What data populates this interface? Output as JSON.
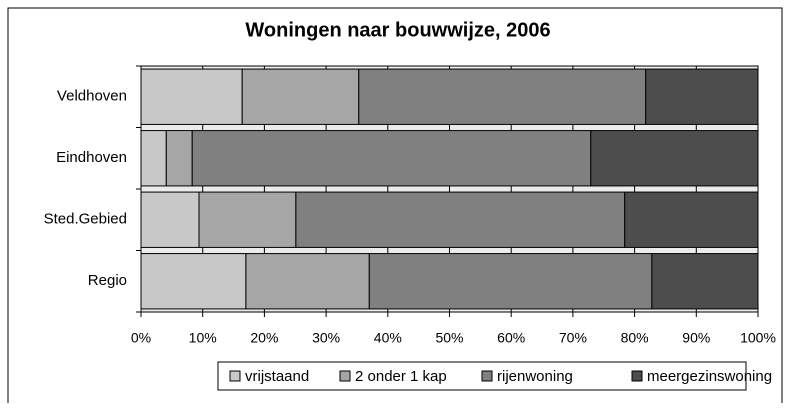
{
  "chart_data": {
    "type": "bar",
    "orientation": "horizontal",
    "stacked": true,
    "title": "Woningen naar bouwwijze, 2006",
    "categories": [
      "Veldhoven",
      "Eindhoven",
      "Sted.Gebied",
      "Regio"
    ],
    "series": [
      {
        "name": "vrijstaand",
        "color": "#c8c8c8",
        "values": [
          16.4,
          4.1,
          9.4,
          17.0
        ]
      },
      {
        "name": "2 onder 1 kap",
        "color": "#a6a6a6",
        "values": [
          18.9,
          4.2,
          15.7,
          20.0
        ]
      },
      {
        "name": "rijenwoning",
        "color": "#808080",
        "values": [
          46.5,
          64.6,
          53.3,
          45.8
        ]
      },
      {
        "name": "meergezinswoning",
        "color": "#4d4d4d",
        "values": [
          18.2,
          27.1,
          21.6,
          17.2
        ]
      }
    ],
    "xlim": [
      0,
      100
    ],
    "xticks": [
      {
        "value": 0,
        "label": "0%"
      },
      {
        "value": 10,
        "label": "10%"
      },
      {
        "value": 20,
        "label": "20%"
      },
      {
        "value": 30,
        "label": "30%"
      },
      {
        "value": 40,
        "label": "40%"
      },
      {
        "value": 50,
        "label": "50%"
      },
      {
        "value": 60,
        "label": "60%"
      },
      {
        "value": 70,
        "label": "70%"
      },
      {
        "value": 80,
        "label": "80%"
      },
      {
        "value": 90,
        "label": "90%"
      },
      {
        "value": 100,
        "label": "100%"
      }
    ],
    "grid": true,
    "legend": "bottom"
  }
}
